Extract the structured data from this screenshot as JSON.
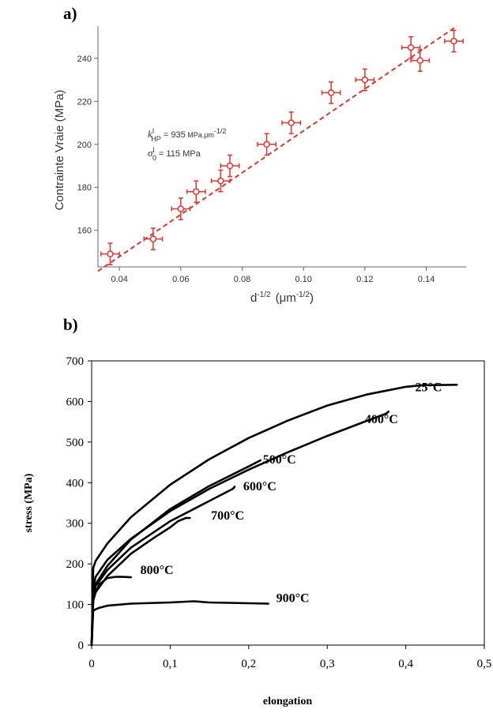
{
  "panel_a_label": "a)",
  "panel_b_label": "b)",
  "chart_data": [
    {
      "type": "scatter",
      "panel": "a)",
      "xlabel_base": "d",
      "xlabel_exp": "-1/2",
      "xlabel_unit_open": "(μm",
      "xlabel_unit_exp": "-1/2",
      "xlabel_unit_close": ")",
      "ylabel": "Contrainte Vraie (MPa)",
      "xlim": [
        0.033,
        0.153
      ],
      "ylim": [
        143,
        255
      ],
      "xticks": [
        0.04,
        0.06,
        0.08,
        0.1,
        0.12,
        0.14
      ],
      "yticks": [
        160,
        180,
        200,
        220,
        240
      ],
      "grid": false,
      "point_color": "#e8322c",
      "points": [
        {
          "x": 0.037,
          "y": 149,
          "yerr": 5,
          "xerr": 0.003
        },
        {
          "x": 0.051,
          "y": 156,
          "yerr": 5,
          "xerr": 0.003
        },
        {
          "x": 0.06,
          "y": 170,
          "yerr": 5,
          "xerr": 0.003
        },
        {
          "x": 0.065,
          "y": 178,
          "yerr": 5,
          "xerr": 0.003
        },
        {
          "x": 0.073,
          "y": 183,
          "yerr": 5,
          "xerr": 0.003
        },
        {
          "x": 0.076,
          "y": 190,
          "yerr": 5,
          "xerr": 0.003
        },
        {
          "x": 0.088,
          "y": 200,
          "yerr": 5,
          "xerr": 0.003
        },
        {
          "x": 0.096,
          "y": 210,
          "yerr": 5,
          "xerr": 0.003
        },
        {
          "x": 0.109,
          "y": 224,
          "yerr": 5,
          "xerr": 0.003
        },
        {
          "x": 0.12,
          "y": 230,
          "yerr": 5,
          "xerr": 0.003
        },
        {
          "x": 0.135,
          "y": 245,
          "yerr": 5,
          "xerr": 0.003
        },
        {
          "x": 0.138,
          "y": 239,
          "yerr": 5,
          "xerr": 0.003
        },
        {
          "x": 0.149,
          "y": 248,
          "yerr": 5,
          "xerr": 0.003
        }
      ],
      "fit_line": {
        "x": [
          0.033,
          0.15
        ],
        "y": [
          141,
          255
        ]
      },
      "annotation": {
        "k_sym": "k",
        "k_sup": "I",
        "k_sub": "HP",
        "k_eq": " = 935",
        "k_unit": " MPa.μm",
        "k_unit_exp": "-1/2",
        "s_sym": "σ",
        "s_sup": "I",
        "s_sub": "0",
        "s_eq": "  =  115",
        "s_unit": " MPa"
      }
    },
    {
      "type": "line",
      "panel": "b)",
      "xlabel": "elongation",
      "ylabel": "stress  (MPa)",
      "xlim": [
        0,
        0.5
      ],
      "ylim": [
        0,
        700
      ],
      "xticks": [
        0,
        0.1,
        0.2,
        0.3,
        0.4,
        0.5
      ],
      "xtick_labels": [
        "0",
        "0,1",
        "0,2",
        "0,3",
        "0,4",
        "0,5"
      ],
      "yticks": [
        0,
        100,
        200,
        300,
        400,
        500,
        600,
        700
      ],
      "ytick_labels": [
        "0",
        "100",
        "200",
        "300",
        "400",
        "500",
        "600",
        "700"
      ],
      "grid": false,
      "series": [
        {
          "name": "25°C",
          "label_at": [
            0.412,
            625
          ],
          "x": [
            0,
            0.002,
            0.005,
            0.02,
            0.05,
            0.1,
            0.15,
            0.2,
            0.25,
            0.3,
            0.35,
            0.4,
            0.42,
            0.465
          ],
          "y": [
            0,
            190,
            207,
            250,
            315,
            395,
            458,
            510,
            553,
            590,
            617,
            636,
            640,
            641
          ]
        },
        {
          "name": "400°C",
          "label_at": [
            0.348,
            546
          ],
          "x": [
            0,
            0.002,
            0.005,
            0.02,
            0.05,
            0.1,
            0.15,
            0.2,
            0.25,
            0.3,
            0.35,
            0.375,
            0.378
          ],
          "y": [
            0,
            140,
            168,
            210,
            262,
            330,
            385,
            432,
            475,
            515,
            552,
            570,
            575
          ]
        },
        {
          "name": "500°C",
          "label_at": [
            0.218,
            447
          ],
          "x": [
            0,
            0.002,
            0.005,
            0.02,
            0.05,
            0.1,
            0.15,
            0.2,
            0.215
          ],
          "y": [
            0,
            135,
            150,
            195,
            260,
            335,
            392,
            440,
            455
          ]
        },
        {
          "name": "600°C",
          "label_at": [
            0.193,
            381
          ],
          "x": [
            0,
            0.002,
            0.005,
            0.02,
            0.05,
            0.1,
            0.15,
            0.18,
            0.182
          ],
          "y": [
            0,
            120,
            145,
            185,
            240,
            305,
            355,
            385,
            390
          ]
        },
        {
          "name": "700°C",
          "label_at": [
            0.152,
            309
          ],
          "x": [
            0,
            0.002,
            0.005,
            0.02,
            0.05,
            0.08,
            0.1,
            0.11,
            0.12,
            0.125
          ],
          "y": [
            0,
            110,
            130,
            170,
            225,
            265,
            290,
            305,
            313,
            313
          ]
        },
        {
          "name": "800°C",
          "label_at": [
            0.062,
            175
          ],
          "x": [
            0,
            0.002,
            0.005,
            0.01,
            0.02,
            0.03,
            0.04,
            0.05
          ],
          "y": [
            0,
            110,
            130,
            150,
            165,
            168,
            168,
            167
          ]
        },
        {
          "name": "900°C",
          "label_at": [
            0.235,
            106
          ],
          "x": [
            0,
            0.002,
            0.005,
            0.01,
            0.02,
            0.05,
            0.1,
            0.13,
            0.15,
            0.2,
            0.225
          ],
          "y": [
            0,
            85,
            88,
            92,
            97,
            102,
            105,
            108,
            105,
            103,
            102
          ]
        }
      ]
    }
  ]
}
